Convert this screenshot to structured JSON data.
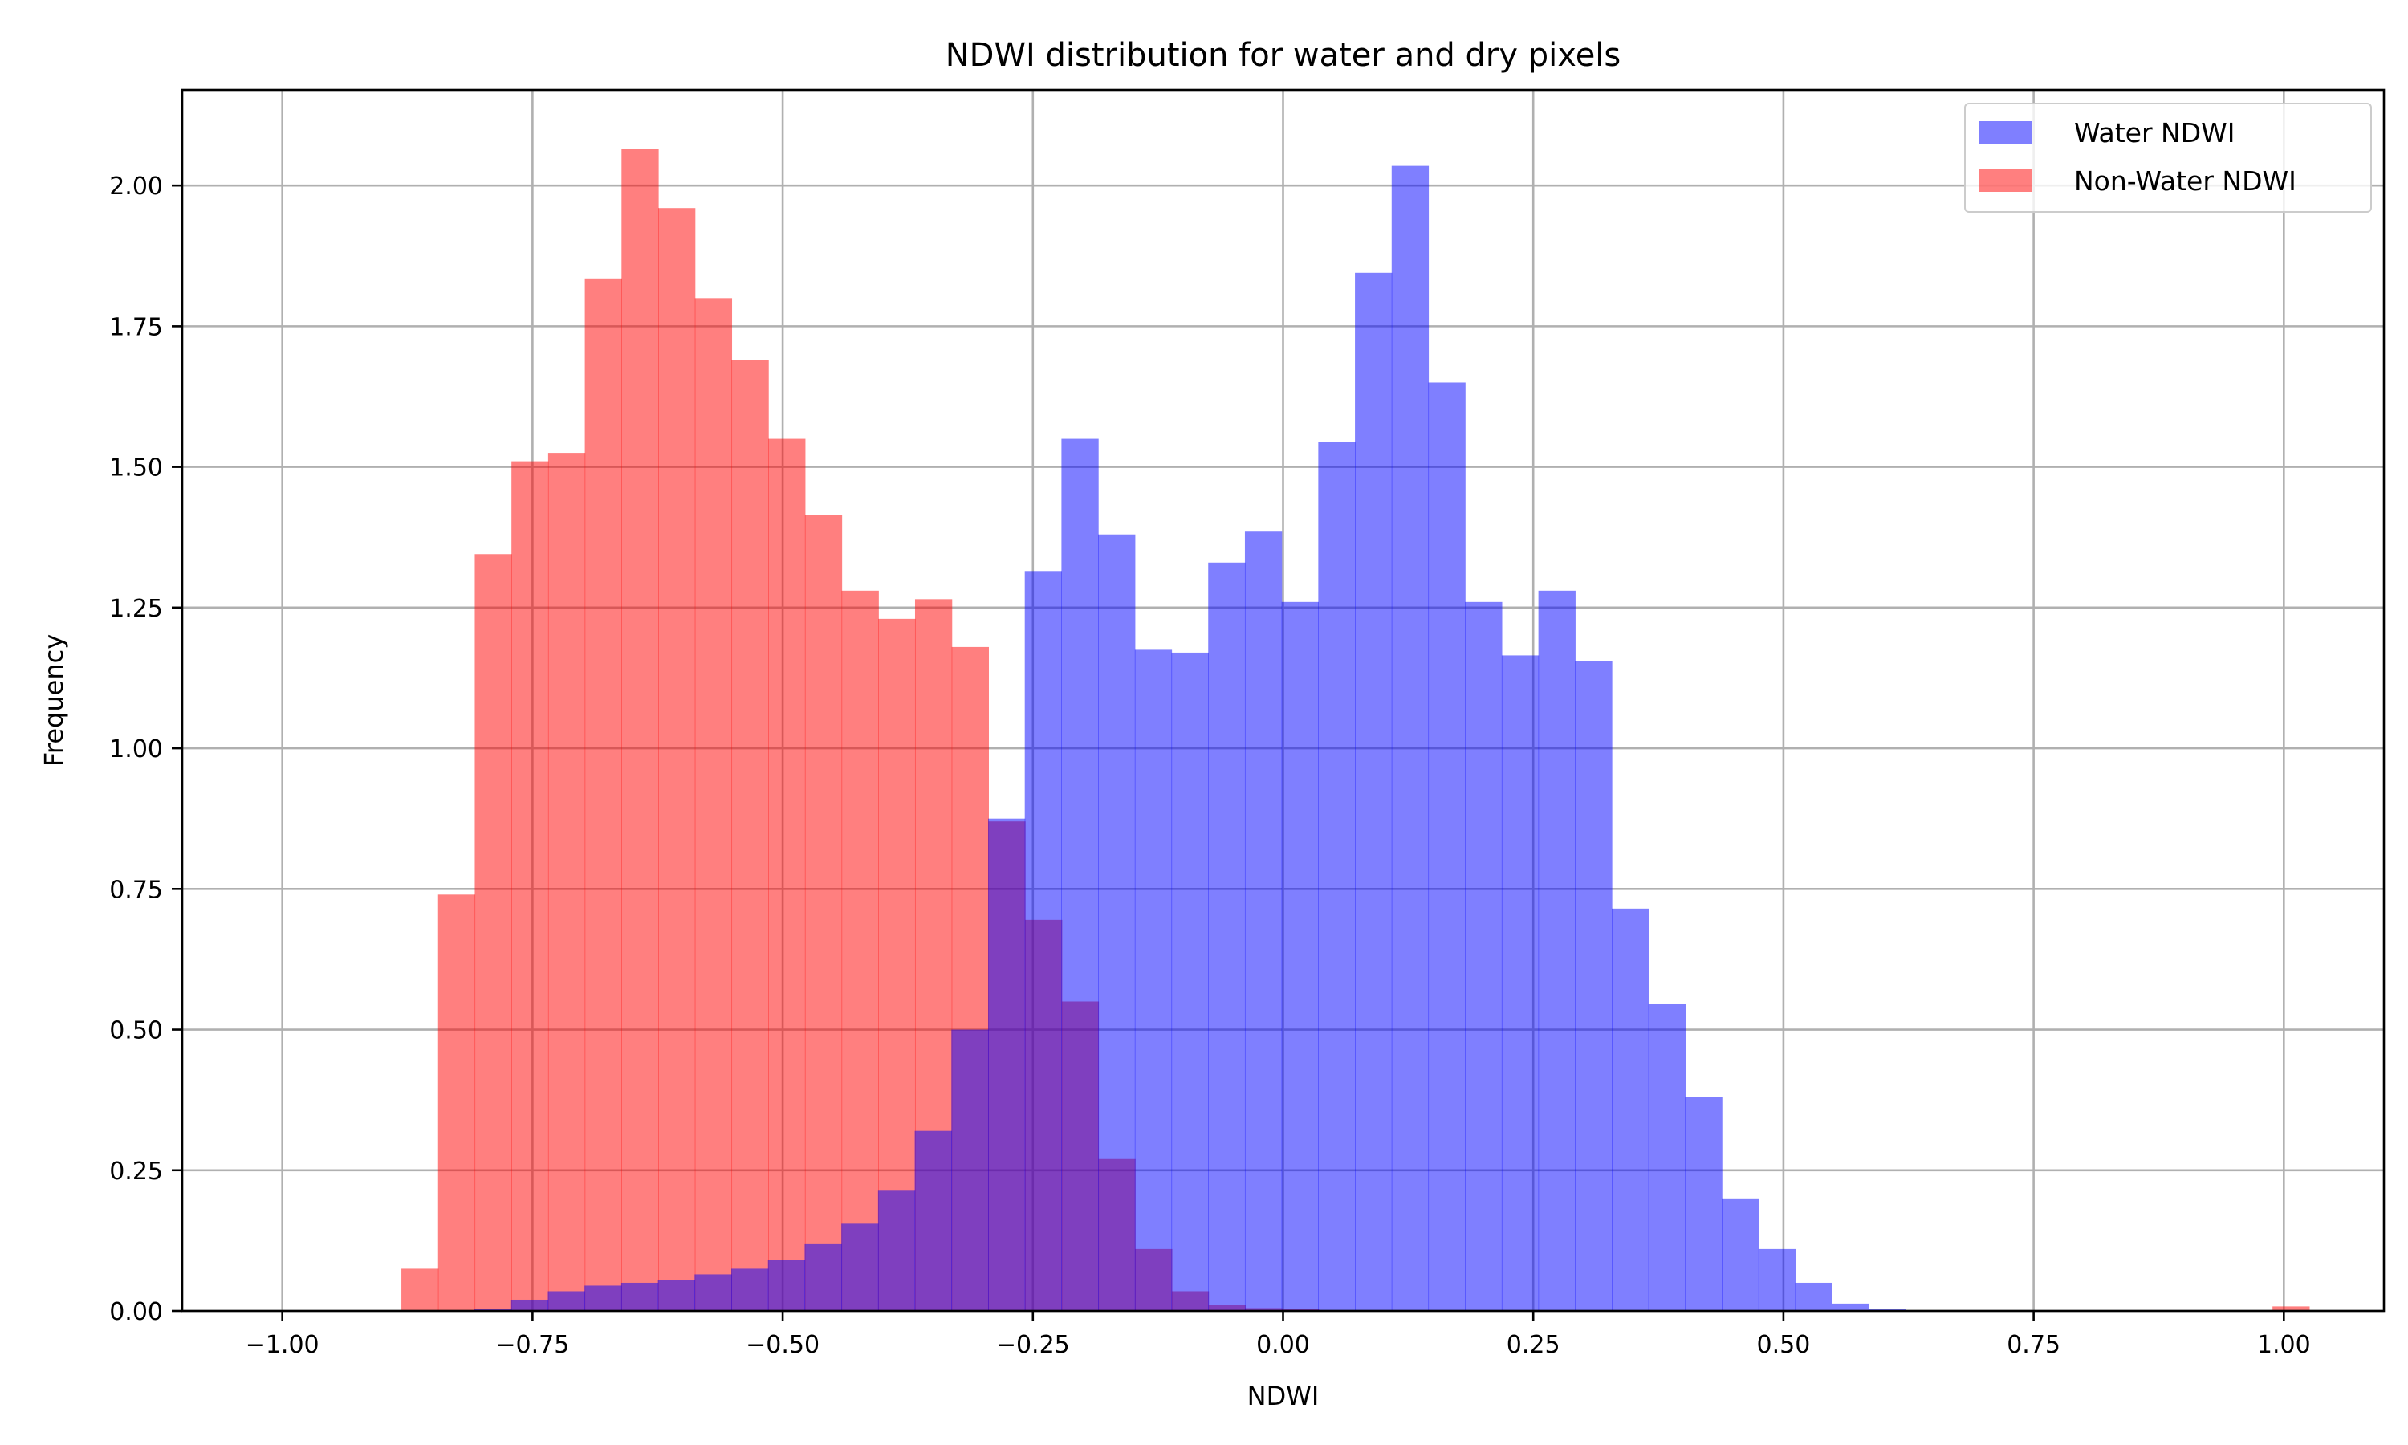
{
  "chart_data": {
    "type": "bar",
    "title": "NDWI distribution for water and dry pixels",
    "xlabel": "NDWI",
    "ylabel": "Frequency",
    "xlim": [
      -1.1,
      1.1
    ],
    "ylim": [
      0,
      2.17
    ],
    "xticks": [
      -1.0,
      -0.75,
      -0.5,
      -0.25,
      0.0,
      0.25,
      0.5,
      0.75,
      1.0
    ],
    "xtick_labels": [
      "−1.00",
      "−0.75",
      "−0.50",
      "−0.25",
      "0.00",
      "0.25",
      "0.50",
      "0.75",
      "1.00"
    ],
    "yticks": [
      0,
      0.25,
      0.5,
      0.75,
      1.0,
      1.25,
      1.5,
      1.75,
      2.0
    ],
    "ytick_labels": [
      "0.00",
      "0.25",
      "0.50",
      "0.75",
      "1.00",
      "1.25",
      "1.50",
      "1.75",
      "2.00"
    ],
    "grid": true,
    "legend": "top-right",
    "series": [
      {
        "name": "Non-Water NDWI",
        "color": "#ff0000",
        "alpha": 0.5,
        "bin_start": -0.881,
        "bin_width": 0.03666,
        "values": [
          0.075,
          0.74,
          1.345,
          1.51,
          1.525,
          1.835,
          2.065,
          1.96,
          1.8,
          1.69,
          1.55,
          1.415,
          1.28,
          1.23,
          1.265,
          1.18,
          0.87,
          0.695,
          0.55,
          0.27,
          0.11,
          0.035,
          0.01,
          0.005,
          0.003,
          0,
          0,
          0,
          0,
          0,
          0,
          0,
          0,
          0,
          0,
          0,
          0,
          0,
          0,
          0,
          0,
          0,
          0,
          0,
          0,
          0,
          0,
          0,
          0,
          0,
          0,
          0.008
        ]
      },
      {
        "name": "Water NDWI",
        "color": "#0000ff",
        "alpha": 0.5,
        "bin_start": -0.808,
        "bin_width": 0.03666,
        "values": [
          0.004,
          0.02,
          0.035,
          0.045,
          0.05,
          0.055,
          0.065,
          0.075,
          0.09,
          0.12,
          0.155,
          0.215,
          0.32,
          0.5,
          0.875,
          1.315,
          1.55,
          1.38,
          1.175,
          1.17,
          1.33,
          1.385,
          1.26,
          1.545,
          1.845,
          2.035,
          1.65,
          1.26,
          1.165,
          1.28,
          1.155,
          0.715,
          0.545,
          0.38,
          0.2,
          0.11,
          0.05,
          0.013,
          0.004
        ]
      }
    ]
  }
}
